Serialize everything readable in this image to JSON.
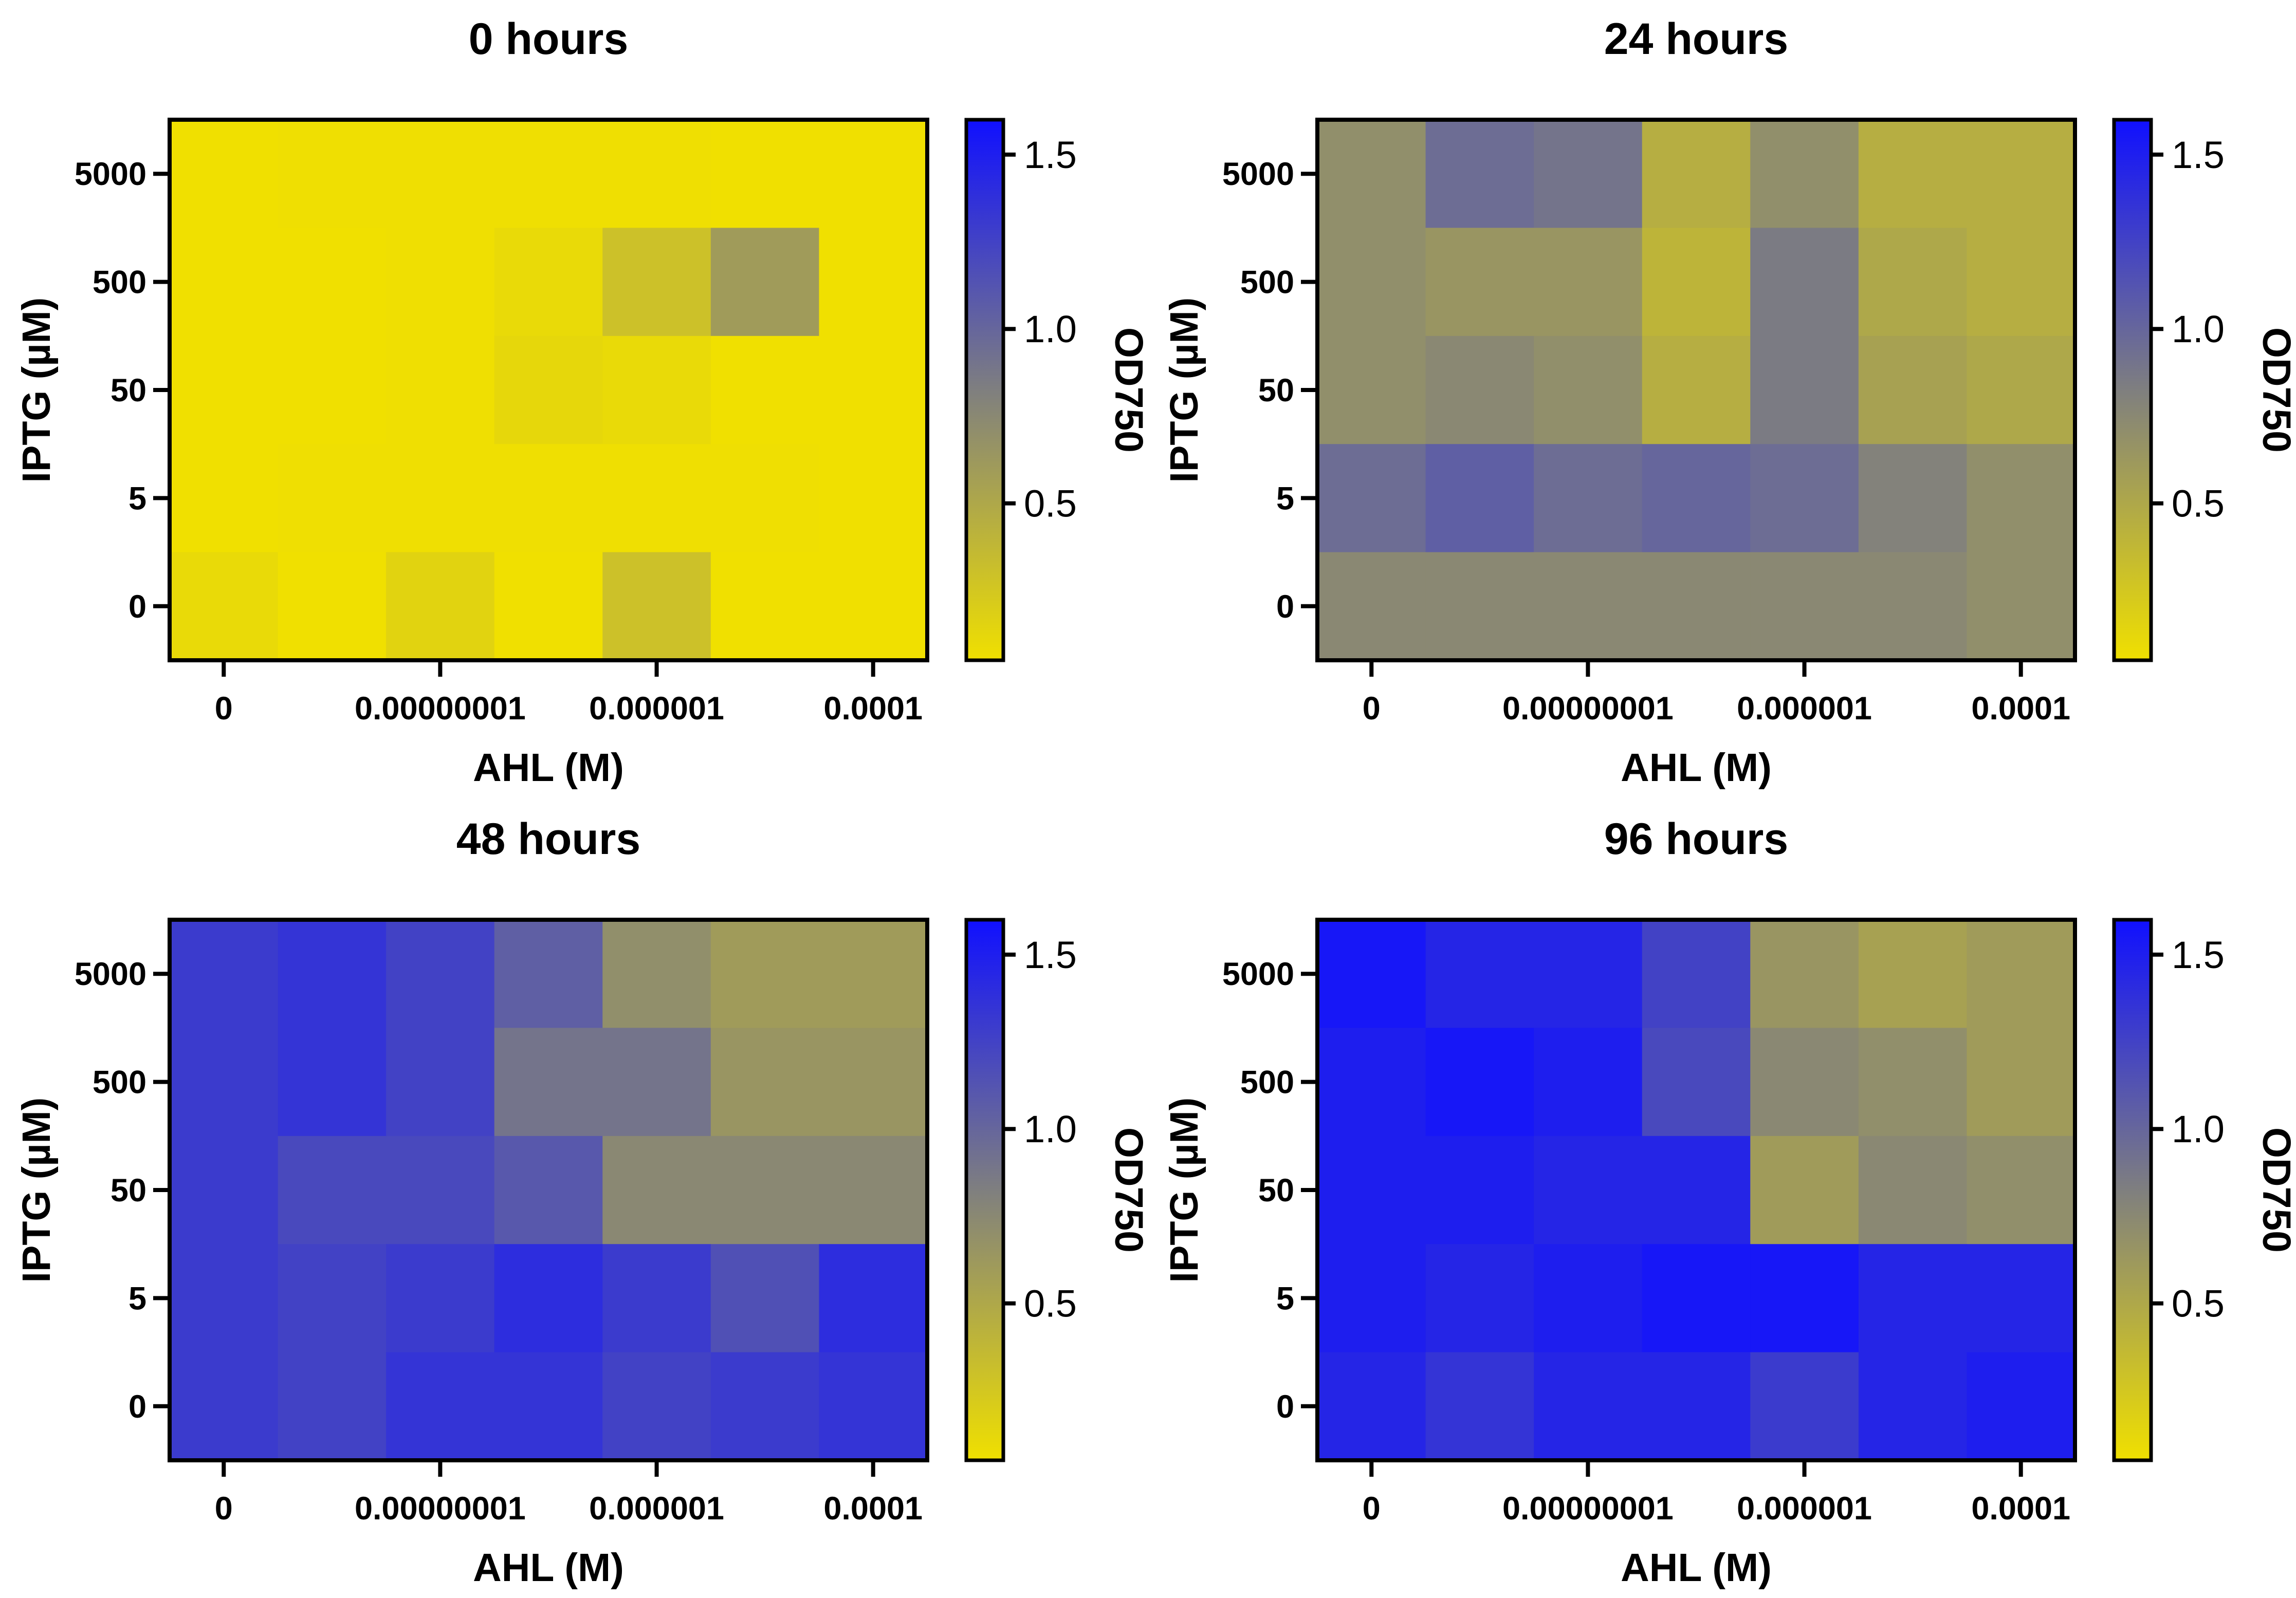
{
  "chart_data": [
    {
      "type": "heatmap",
      "title": "0 hours",
      "xlabel": "AHL (M)",
      "ylabel": "IPTG (µM)",
      "x_tick_labels": [
        "0",
        "0.00000001",
        "0.000001",
        "0.0001"
      ],
      "y_categories": [
        "5000",
        "500",
        "50",
        "5",
        "0"
      ],
      "colorbar": {
        "label": "OD750",
        "range": [
          0.05,
          1.6
        ],
        "ticks": [
          "0.5",
          "1.0",
          "1.5"
        ],
        "colors": [
          "#f0e000",
          "#7f7f7f",
          "#1010ff"
        ]
      },
      "values": [
        [
          0.05,
          0.06,
          0.06,
          0.06,
          0.06,
          0.05,
          0.05
        ],
        [
          0.05,
          0.05,
          0.06,
          0.1,
          0.3,
          0.6,
          0.05
        ],
        [
          0.05,
          0.05,
          0.06,
          0.12,
          0.1,
          0.05,
          0.05
        ],
        [
          0.05,
          0.06,
          0.06,
          0.06,
          0.06,
          0.06,
          0.05
        ],
        [
          0.1,
          0.05,
          0.15,
          0.05,
          0.3,
          0.05,
          0.05
        ]
      ]
    },
    {
      "type": "heatmap",
      "title": "24 hours",
      "xlabel": "AHL (M)",
      "ylabel": "IPTG (µM)",
      "x_tick_labels": [
        "0",
        "0.00000001",
        "0.000001",
        "0.0001"
      ],
      "y_categories": [
        "5000",
        "500",
        "50",
        "5",
        "0"
      ],
      "colorbar": {
        "label": "OD750",
        "range": [
          0.05,
          1.6
        ],
        "ticks": [
          "0.5",
          "1.0",
          "1.5"
        ],
        "colors": [
          "#f0e000",
          "#7f7f7f",
          "#1010ff"
        ]
      },
      "values": [
        [
          0.7,
          0.95,
          0.9,
          0.45,
          0.7,
          0.45,
          0.45
        ],
        [
          0.7,
          0.65,
          0.65,
          0.4,
          0.85,
          0.5,
          0.45
        ],
        [
          0.7,
          0.75,
          0.7,
          0.45,
          0.85,
          0.55,
          0.5
        ],
        [
          0.95,
          1.05,
          0.95,
          1.0,
          0.95,
          0.8,
          0.7
        ],
        [
          0.75,
          0.75,
          0.75,
          0.75,
          0.75,
          0.75,
          0.7
        ]
      ]
    },
    {
      "type": "heatmap",
      "title": "48 hours",
      "xlabel": "AHL (M)",
      "ylabel": "IPTG (µM)",
      "x_tick_labels": [
        "0",
        "0.00000001",
        "0.000001",
        "0.0001"
      ],
      "y_categories": [
        "5000",
        "500",
        "50",
        "5",
        "0"
      ],
      "colorbar": {
        "label": "OD750",
        "range": [
          0.05,
          1.6
        ],
        "ticks": [
          "0.5",
          "1.0",
          "1.5"
        ],
        "colors": [
          "#f0e000",
          "#7f7f7f",
          "#1010ff"
        ]
      },
      "values": [
        [
          1.3,
          1.35,
          1.25,
          1.05,
          0.7,
          0.6,
          0.6
        ],
        [
          1.3,
          1.35,
          1.25,
          0.9,
          0.9,
          0.65,
          0.65
        ],
        [
          1.3,
          1.2,
          1.2,
          1.1,
          0.75,
          0.75,
          0.75
        ],
        [
          1.3,
          1.25,
          1.3,
          1.4,
          1.3,
          1.15,
          1.4
        ],
        [
          1.3,
          1.25,
          1.35,
          1.35,
          1.25,
          1.3,
          1.35
        ]
      ]
    },
    {
      "type": "heatmap",
      "title": "96 hours",
      "xlabel": "AHL (M)",
      "ylabel": "IPTG (µM)",
      "x_tick_labels": [
        "0",
        "0.00000001",
        "0.000001",
        "0.0001"
      ],
      "y_categories": [
        "5000",
        "500",
        "50",
        "5",
        "0"
      ],
      "colorbar": {
        "label": "OD750",
        "range": [
          0.05,
          1.6
        ],
        "ticks": [
          "0.5",
          "1.0",
          "1.5"
        ],
        "colors": [
          "#f0e000",
          "#7f7f7f",
          "#1010ff"
        ]
      },
      "values": [
        [
          1.55,
          1.45,
          1.45,
          1.25,
          0.65,
          0.55,
          0.6
        ],
        [
          1.5,
          1.55,
          1.5,
          1.2,
          0.75,
          0.7,
          0.6
        ],
        [
          1.5,
          1.5,
          1.45,
          1.45,
          0.6,
          0.75,
          0.7
        ],
        [
          1.5,
          1.45,
          1.5,
          1.55,
          1.55,
          1.45,
          1.45
        ],
        [
          1.45,
          1.35,
          1.45,
          1.45,
          1.3,
          1.45,
          1.5
        ]
      ]
    }
  ]
}
